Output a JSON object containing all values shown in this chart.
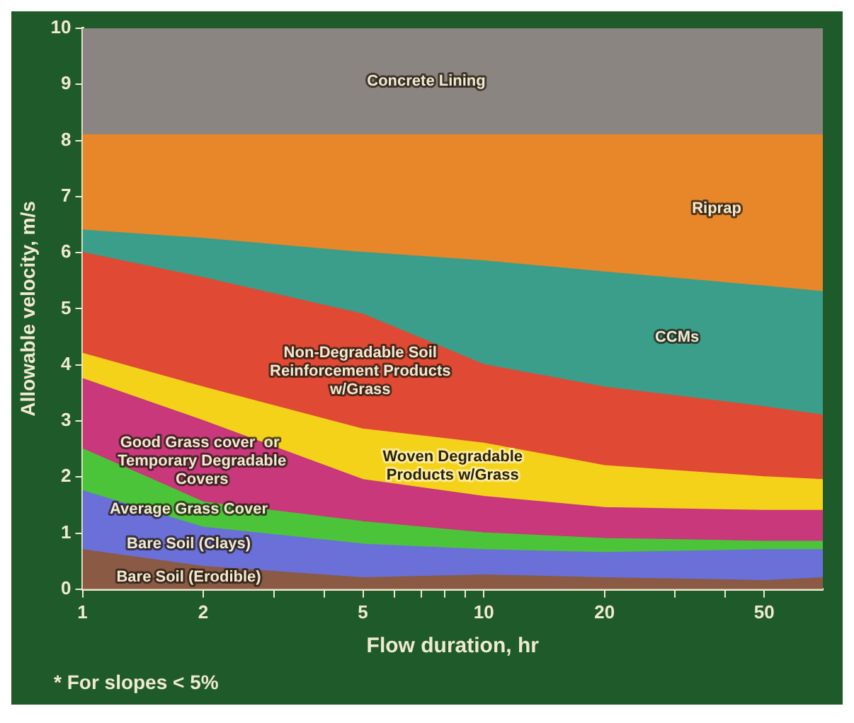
{
  "chart_data": {
    "type": "area",
    "stacked": true,
    "xlabel": "Flow duration, hr",
    "ylabel": "Allowable velocity, m/s",
    "log": "x",
    "x": [
      1,
      2,
      5,
      10,
      20,
      50,
      70
    ],
    "xlim": [
      1,
      70
    ],
    "xticks": [
      1,
      2,
      {
        "value": 3,
        "label": null
      },
      {
        "value": 4,
        "label": null
      },
      5,
      {
        "value": 6,
        "label": null
      },
      {
        "value": 7,
        "label": null
      },
      {
        "value": 8,
        "label": null
      },
      {
        "value": 9,
        "label": null
      },
      10,
      20,
      {
        "value": 30,
        "label": null
      },
      {
        "value": 40,
        "label": null
      },
      50
    ],
    "ylim": [
      0,
      10
    ],
    "yticks": [
      0,
      1,
      2,
      3,
      4,
      5,
      6,
      7,
      8,
      9,
      10
    ],
    "grid": false,
    "legend": false,
    "series": [
      {
        "name": "Bare Soil (Erodible)",
        "color": "#8a5a45",
        "values": [
          0.7,
          0.4,
          0.2,
          0.25,
          0.2,
          0.15,
          0.2
        ]
      },
      {
        "name": "Bare Soil (Clays)",
        "color": "#6a70d8",
        "values": [
          1.05,
          0.7,
          0.6,
          0.45,
          0.45,
          0.55,
          0.5
        ]
      },
      {
        "name": "Average Grass Cover",
        "color": "#4cc43a",
        "values": [
          0.75,
          0.45,
          0.4,
          0.3,
          0.25,
          0.15,
          0.15
        ]
      },
      {
        "name": "Good Grass cover  or  Temporary Degradable Covers",
        "color": "#c8387a",
        "values": [
          1.25,
          1.45,
          0.75,
          0.65,
          0.55,
          0.55,
          0.55
        ]
      },
      {
        "name": "Woven Degradable Products w/Grass",
        "color": "#f5d21a",
        "values": [
          0.45,
          0.6,
          0.9,
          0.95,
          0.75,
          0.6,
          0.55
        ]
      },
      {
        "name": "Non-Degradable Soil Reinforcement Products w/Grass",
        "color": "#e04a35",
        "values": [
          1.8,
          1.95,
          2.05,
          1.4,
          1.4,
          1.25,
          1.15
        ]
      },
      {
        "name": "CCMs",
        "color": "#3a9e8a",
        "values": [
          0.4,
          0.7,
          1.1,
          1.85,
          2.05,
          2.15,
          2.2
        ]
      },
      {
        "name": "Riprap",
        "color": "#e8862a",
        "values": [
          1.7,
          1.85,
          2.1,
          2.25,
          2.45,
          2.7,
          2.8
        ]
      },
      {
        "name": "Concrete Lining",
        "color": "#8a8580",
        "values": [
          1.9,
          1.9,
          1.9,
          1.9,
          1.9,
          1.9,
          1.9
        ]
      }
    ],
    "annotations": [
      "* For slopes < 5%"
    ]
  }
}
